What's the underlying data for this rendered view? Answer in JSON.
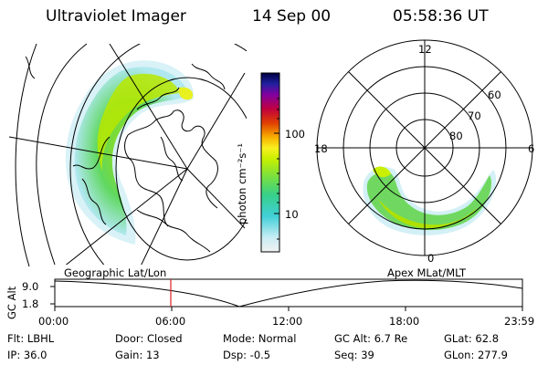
{
  "header": {
    "instrument": "Ultraviolet Imager",
    "date": "14 Sep 00",
    "time": "05:58:36 UT"
  },
  "colorbar": {
    "label": "photon cm⁻²s⁻¹",
    "ticks": [
      "100",
      "10"
    ],
    "scale": "log",
    "colors": [
      "#f2f2f2",
      "#c8ecf4",
      "#40d0d8",
      "#38d088",
      "#78e040",
      "#c8f000",
      "#f8f020",
      "#f8b000",
      "#e04000",
      "#c00040",
      "#8000a0",
      "#2020a0",
      "#000040"
    ]
  },
  "polar_plot": {
    "mlt_labels": {
      "top": "12",
      "left": "18",
      "right": "6",
      "bottom": "0"
    },
    "lat_labels": [
      "60",
      "70",
      "80"
    ]
  },
  "timeline": {
    "left_title": "Geographic Lat/Lon",
    "right_title": "Apex MLat/MLT",
    "axis_label": "GC Alt",
    "y_ticks": [
      "9.0",
      "1.8"
    ],
    "x_ticks": [
      "00:00",
      "06:00",
      "12:00",
      "18:00",
      "23:59"
    ],
    "marker_time": "05:58:36",
    "marker_color": "#e02020"
  },
  "footer": {
    "flt": "Flt: LBHL",
    "ip": "IP: 36.0",
    "door": "Door: Closed",
    "gain": "Gain: 13",
    "mode": "Mode: Normal",
    "dsp": "Dsp:    -0.5",
    "gcalt": "GC Alt: 6.7 Re",
    "seq": "Seq: 39",
    "glat": "GLat:  62.8",
    "glon": "GLon: 277.9"
  }
}
